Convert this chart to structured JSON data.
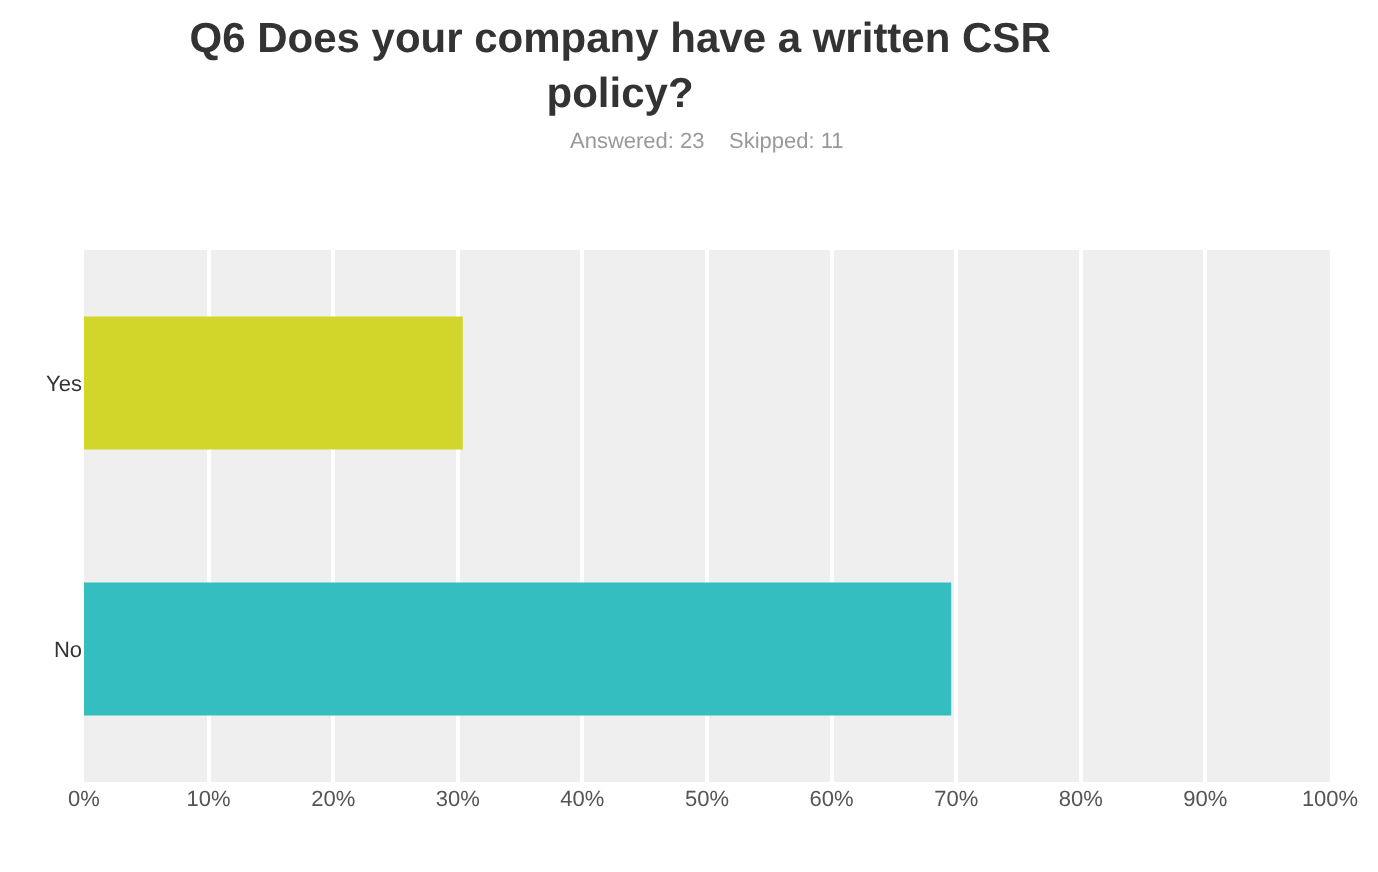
{
  "chart_data": {
    "type": "bar",
    "orientation": "horizontal",
    "title": "Q6 Does your company have a written CSR policy?",
    "subtitle": "Answered: 23    Skipped: 11",
    "categories": [
      "Yes",
      "No"
    ],
    "values": [
      30.4,
      69.6
    ],
    "colors": [
      "#d2d62a",
      "#35bec0"
    ],
    "xlim": [
      0,
      100
    ],
    "xticks": [
      {
        "value": 0,
        "label": "0%"
      },
      {
        "value": 10,
        "label": "10%"
      },
      {
        "value": 20,
        "label": "20%"
      },
      {
        "value": 30,
        "label": "30%"
      },
      {
        "value": 40,
        "label": "40%"
      },
      {
        "value": 50,
        "label": "50%"
      },
      {
        "value": 60,
        "label": "60%"
      },
      {
        "value": 70,
        "label": "70%"
      },
      {
        "value": 80,
        "label": "80%"
      },
      {
        "value": 90,
        "label": "90%"
      },
      {
        "value": 100,
        "label": "100%"
      }
    ],
    "grid": "x",
    "legend": false
  }
}
